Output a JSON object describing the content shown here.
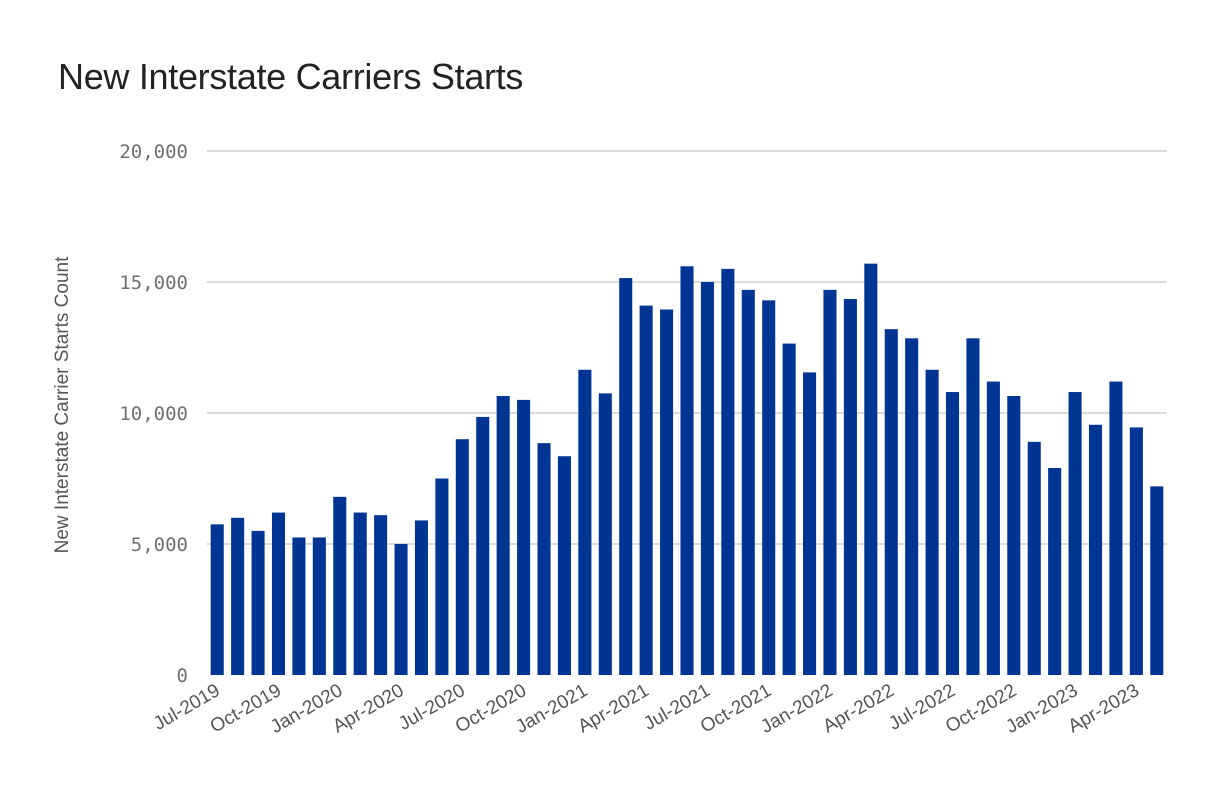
{
  "chart_data": {
    "type": "bar",
    "title": "New Interstate Carriers Starts",
    "xlabel": "",
    "ylabel": "New Interstate Carrier Starts Count",
    "ylim": [
      0,
      20000
    ],
    "yticks": [
      0,
      5000,
      10000,
      15000,
      20000
    ],
    "ytick_labels": [
      "0",
      "5,000",
      "10,000",
      "15,000",
      "20,000"
    ],
    "grid": true,
    "bar_color": "#003594",
    "categories": [
      "Jul-2019",
      "Aug-2019",
      "Sep-2019",
      "Oct-2019",
      "Nov-2019",
      "Dec-2019",
      "Jan-2020",
      "Feb-2020",
      "Mar-2020",
      "Apr-2020",
      "May-2020",
      "Jun-2020",
      "Jul-2020",
      "Aug-2020",
      "Sep-2020",
      "Oct-2020",
      "Nov-2020",
      "Dec-2020",
      "Jan-2021",
      "Feb-2021",
      "Mar-2021",
      "Apr-2021",
      "May-2021",
      "Jun-2021",
      "Jul-2021",
      "Aug-2021",
      "Sep-2021",
      "Oct-2021",
      "Nov-2021",
      "Dec-2021",
      "Jan-2022",
      "Feb-2022",
      "Mar-2022",
      "Apr-2022",
      "May-2022",
      "Jun-2022",
      "Jul-2022",
      "Aug-2022",
      "Sep-2022",
      "Oct-2022",
      "Nov-2022",
      "Dec-2022",
      "Jan-2023",
      "Feb-2023",
      "Mar-2023",
      "Apr-2023",
      "May-2023"
    ],
    "xtick_labels": [
      "Jul-2019",
      "Oct-2019",
      "Jan-2020",
      "Apr-2020",
      "Jul-2020",
      "Oct-2020",
      "Jan-2021",
      "Apr-2021",
      "Jul-2021",
      "Oct-2021",
      "Jan-2022",
      "Apr-2022",
      "Jul-2022",
      "Oct-2022",
      "Jan-2023",
      "Apr-2023"
    ],
    "values": [
      5750,
      6000,
      5500,
      6200,
      5250,
      5250,
      6800,
      6200,
      6100,
      5000,
      5900,
      7500,
      9000,
      9850,
      10650,
      10500,
      8850,
      8350,
      11650,
      10750,
      15150,
      14100,
      13950,
      15600,
      15000,
      15500,
      14700,
      14300,
      12650,
      11550,
      14700,
      14350,
      15700,
      13200,
      12850,
      11650,
      10800,
      12850,
      11200,
      10650,
      8900,
      7900,
      10800,
      9550,
      11200,
      9450,
      7200
    ]
  }
}
